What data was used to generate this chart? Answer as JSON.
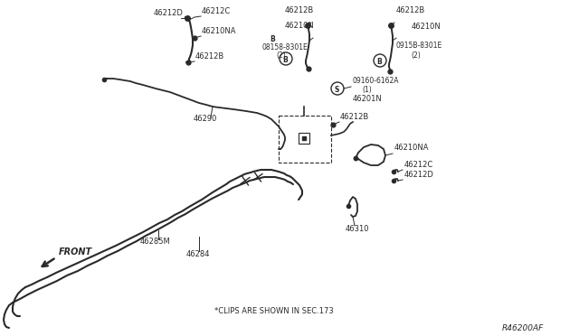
{
  "bg_color": "#ffffff",
  "line_color": "#2a2a2a",
  "text_color": "#2a2a2a",
  "fig_width": 6.4,
  "fig_height": 3.72,
  "dpi": 100,
  "ref_code": "R46200AF",
  "footnote": "*CLIPS ARE SHOWN IN SEC.173",
  "front_label": "FRONT"
}
